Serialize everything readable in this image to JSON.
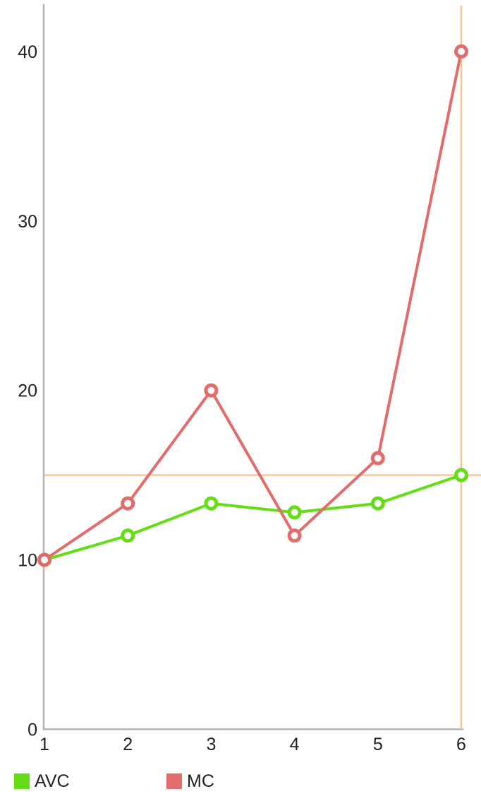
{
  "chart_data": {
    "type": "line",
    "title": "",
    "xlabel": "",
    "ylabel": "",
    "x": [
      1,
      2,
      3,
      4,
      5,
      6
    ],
    "x_ticks": [
      1,
      2,
      3,
      4,
      5,
      6
    ],
    "y_ticks": [
      0,
      10,
      20,
      30,
      40
    ],
    "xlim": [
      1,
      6
    ],
    "ylim": [
      0,
      42.8
    ],
    "grid": "off",
    "series": [
      {
        "name": "AVC",
        "color": "#64DD17",
        "marker": "open-circle",
        "values": [
          10,
          11.43,
          13.33,
          12.8,
          13.33,
          15
        ]
      },
      {
        "name": "MC",
        "color": "#E26B6B",
        "marker": "open-circle",
        "values": [
          10,
          13.33,
          20,
          11.43,
          16,
          40
        ]
      }
    ],
    "crosshair": {
      "x": 6,
      "y": 15,
      "color": "#F8C893"
    },
    "axis_color": "#B3B3B3",
    "text_color": "#212121",
    "background": "#FFFFFF",
    "legend": {
      "position": "bottom",
      "entries": [
        "AVC",
        "MC"
      ]
    }
  }
}
